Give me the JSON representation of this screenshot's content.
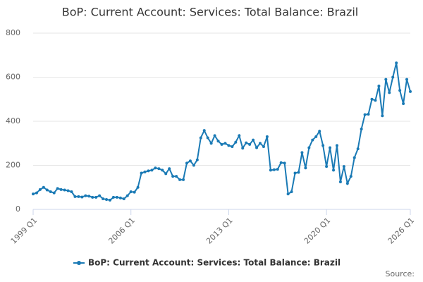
{
  "chart_data": {
    "type": "line",
    "title": "BoP: Current Account: Services: Total Balance: Brazil",
    "categories": [
      "1999 Q1",
      null,
      null,
      null,
      null,
      null,
      null,
      null,
      null,
      null,
      null,
      null,
      null,
      null,
      null,
      null,
      null,
      null,
      null,
      null,
      null,
      null,
      null,
      null,
      null,
      null,
      null,
      null,
      "2006 Q1",
      null,
      null,
      null,
      null,
      null,
      null,
      null,
      null,
      null,
      null,
      null,
      null,
      null,
      null,
      null,
      null,
      null,
      null,
      null,
      null,
      null,
      null,
      null,
      null,
      null,
      null,
      null,
      "2013 Q1",
      null,
      null,
      null,
      null,
      null,
      null,
      null,
      null,
      null,
      null,
      null,
      null,
      null,
      null,
      null,
      null,
      null,
      null,
      null,
      null,
      null,
      null,
      null,
      null,
      null,
      null,
      null,
      "2020 Q1",
      null,
      null,
      null,
      null,
      null,
      null,
      null,
      null,
      null,
      null,
      null,
      null,
      null,
      null,
      null,
      null,
      null,
      null,
      null,
      null,
      null,
      null,
      null,
      "2026 Q1"
    ],
    "series": [
      {
        "name": "BoP: Current Account: Services: Total Balance: Brazil",
        "color": "#1a7ab5",
        "values": [
          70,
          75,
          90,
          100,
          88,
          80,
          75,
          95,
          90,
          88,
          85,
          80,
          58,
          58,
          56,
          62,
          60,
          55,
          55,
          62,
          48,
          45,
          42,
          55,
          55,
          52,
          48,
          62,
          80,
          78,
          100,
          165,
          170,
          175,
          178,
          188,
          185,
          178,
          162,
          185,
          150,
          150,
          135,
          135,
          210,
          220,
          200,
          225,
          325,
          358,
          325,
          300,
          335,
          310,
          295,
          300,
          290,
          285,
          305,
          335,
          278,
          302,
          295,
          315,
          280,
          300,
          285,
          330,
          178,
          180,
          182,
          212,
          210,
          70,
          80,
          165,
          168,
          258,
          188,
          280,
          315,
          330,
          355,
          290,
          195,
          280,
          178,
          290,
          125,
          195,
          118,
          150,
          235,
          275,
          365,
          430,
          432,
          500,
          495,
          560,
          425,
          590,
          530,
          600,
          665,
          540,
          480,
          590,
          535
        ]
      }
    ],
    "ylim": [
      0,
      800
    ],
    "yticks": [
      0,
      200,
      400,
      600,
      800
    ],
    "grid": true,
    "source": "Source:"
  }
}
